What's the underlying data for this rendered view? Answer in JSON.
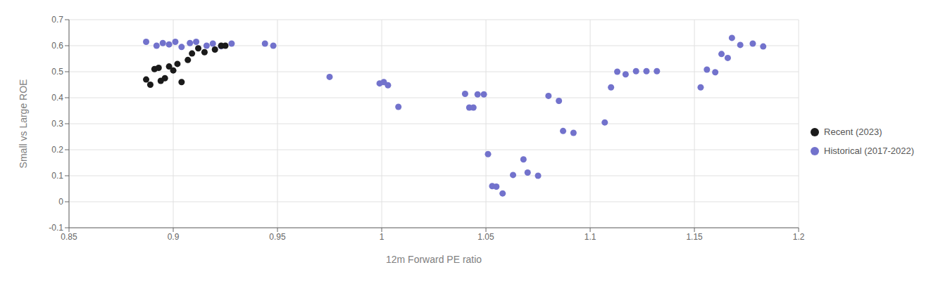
{
  "chart_data": {
    "type": "scatter",
    "xlabel": "12m Forward PE ratio",
    "ylabel": "Small vs Large ROE",
    "xlim": [
      0.85,
      1.2
    ],
    "ylim": [
      -0.1,
      0.7
    ],
    "xticks": [
      0.85,
      0.9,
      0.95,
      1,
      1.05,
      1.1,
      1.15,
      1.2
    ],
    "yticks": [
      -0.1,
      0,
      0.1,
      0.2,
      0.3,
      0.4,
      0.5,
      0.6,
      0.7
    ],
    "grid": true,
    "legend": "right",
    "series": [
      {
        "name": "Historical (2017-2022)",
        "color": "#7272cc",
        "x": [
          0.887,
          0.892,
          0.895,
          0.898,
          0.901,
          0.904,
          0.908,
          0.911,
          0.916,
          0.919,
          0.923,
          0.928,
          0.944,
          0.948,
          0.975,
          0.999,
          1.001,
          1.003,
          1.008,
          1.04,
          1.042,
          1.044,
          1.046,
          1.049,
          1.051,
          1.053,
          1.055,
          1.058,
          1.063,
          1.068,
          1.07,
          1.075,
          1.08,
          1.085,
          1.087,
          1.092,
          1.107,
          1.11,
          1.113,
          1.117,
          1.122,
          1.127,
          1.132,
          1.153,
          1.156,
          1.16,
          1.163,
          1.166,
          1.168,
          1.172,
          1.178,
          1.183
        ],
        "y": [
          0.615,
          0.6,
          0.61,
          0.605,
          0.615,
          0.595,
          0.61,
          0.615,
          0.6,
          0.608,
          0.598,
          0.608,
          0.608,
          0.6,
          0.48,
          0.455,
          0.46,
          0.448,
          0.365,
          0.415,
          0.362,
          0.362,
          0.413,
          0.413,
          0.183,
          0.06,
          0.058,
          0.032,
          0.103,
          0.163,
          0.112,
          0.1,
          0.407,
          0.388,
          0.272,
          0.265,
          0.305,
          0.44,
          0.5,
          0.49,
          0.502,
          0.502,
          0.502,
          0.44,
          0.508,
          0.498,
          0.568,
          0.553,
          0.63,
          0.603,
          0.608,
          0.597
        ]
      },
      {
        "name": "Recent (2023)",
        "color": "#1a1a1a",
        "x": [
          0.887,
          0.889,
          0.891,
          0.893,
          0.894,
          0.896,
          0.898,
          0.9,
          0.902,
          0.904,
          0.907,
          0.909,
          0.912,
          0.915,
          0.92,
          0.923,
          0.925
        ],
        "y": [
          0.47,
          0.45,
          0.51,
          0.515,
          0.465,
          0.475,
          0.52,
          0.505,
          0.53,
          0.46,
          0.545,
          0.57,
          0.59,
          0.575,
          0.585,
          0.6,
          0.6
        ]
      }
    ]
  }
}
